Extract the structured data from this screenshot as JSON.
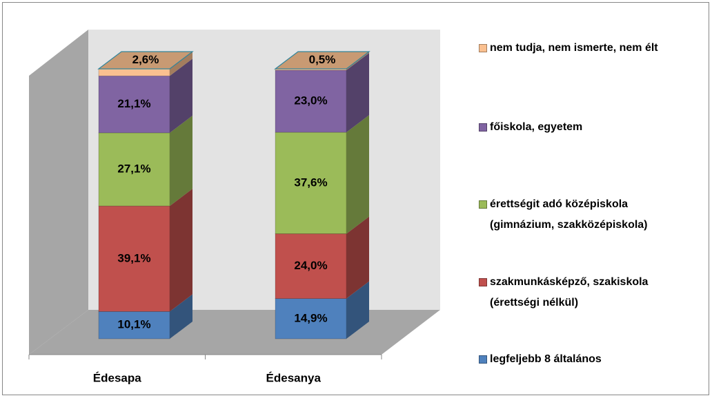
{
  "chart_data": {
    "type": "bar3d_stacked",
    "categories": [
      "Édesapa",
      "Édesanya"
    ],
    "ylim": [
      0,
      100
    ],
    "legend": "right",
    "series": [
      {
        "name": "legfeljebb 8 általános",
        "color": "#4f81bd",
        "values": [
          10.1,
          14.9
        ],
        "value_labels": [
          "10,1%",
          "14,9%"
        ]
      },
      {
        "name": "szakmunkásképző, szakiskola (érettségi nélkül)",
        "color": "#c0504d",
        "values": [
          39.1,
          24.0
        ],
        "value_labels": [
          "39,1%",
          "24,0%"
        ]
      },
      {
        "name": "érettségit adó középiskola (gimnázium, szakközépiskola)",
        "color": "#9bbb59",
        "values": [
          27.1,
          37.6
        ],
        "value_labels": [
          "27,1%",
          "37,6%"
        ]
      },
      {
        "name": "főiskola, egyetem",
        "color": "#8064a2",
        "values": [
          21.1,
          23.0
        ],
        "value_labels": [
          "21,1%",
          "23,0%"
        ]
      },
      {
        "name": "nem tudja, nem ismerte, nem élt",
        "color": "#fac090",
        "values": [
          2.6,
          0.5
        ],
        "value_labels": [
          "2,6%",
          "0,5%"
        ]
      }
    ]
  }
}
